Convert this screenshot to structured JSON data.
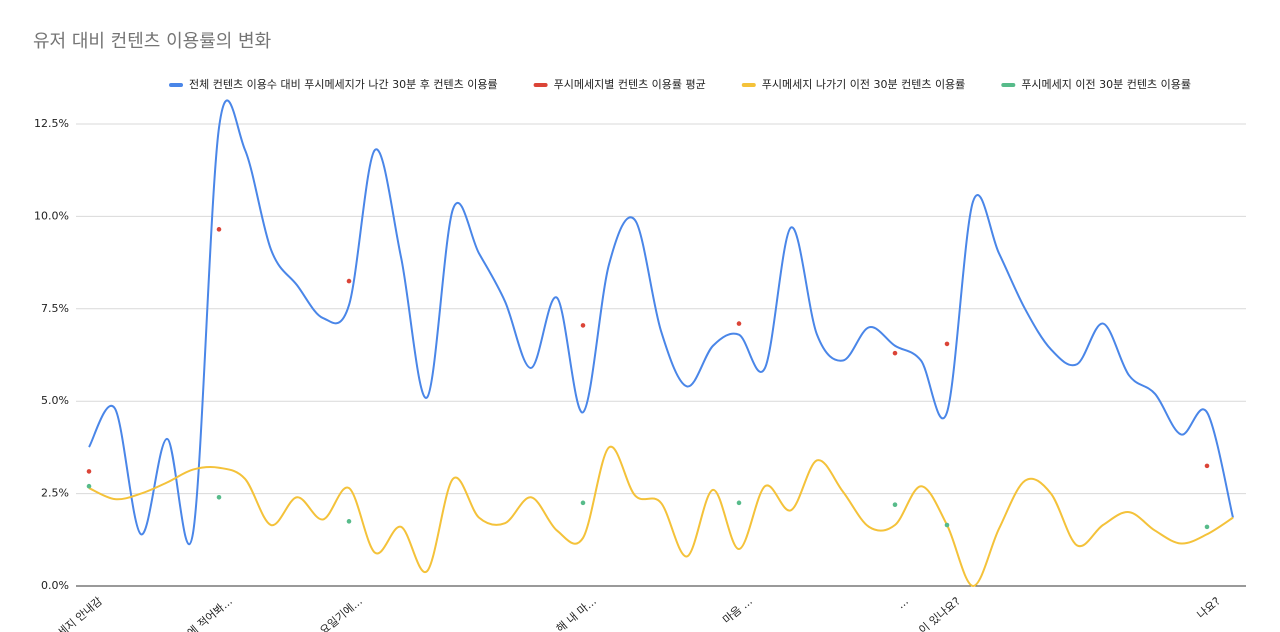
{
  "chart_data": {
    "type": "line",
    "title": "유저 대비 컨텐츠 이용률의 변화",
    "categories": [
      "세지 안내감",
      null,
      null,
      null,
      null,
      "에 적어봐...",
      null,
      null,
      null,
      null,
      "요일기에...",
      null,
      null,
      null,
      null,
      null,
      null,
      null,
      null,
      "해 내 마...",
      null,
      null,
      null,
      null,
      null,
      "마음  ...",
      null,
      null,
      null,
      null,
      null,
      "...",
      null,
      "이 있나요?",
      null,
      null,
      null,
      null,
      null,
      null,
      null,
      null,
      null,
      "나요?",
      null
    ],
    "series": [
      {
        "name": "전체 컨텐츠 이용수 대비 푸시메세지가 나간 30분 후 컨텐츠 이용률",
        "color": "#4a86e8",
        "mode": "line",
        "values": [
          3.76,
          4.8,
          1.4,
          3.98,
          1.43,
          12.4,
          11.8,
          9.1,
          8.14,
          7.25,
          7.6,
          11.8,
          8.9,
          5.1,
          10.2,
          9.0,
          7.7,
          5.9,
          7.8,
          4.7,
          8.7,
          9.9,
          6.9,
          5.4,
          6.5,
          6.8,
          5.9,
          9.7,
          6.8,
          6.1,
          7.0,
          6.5,
          6.1,
          4.7,
          10.4,
          9.0,
          7.5,
          6.4,
          6.0,
          7.1,
          5.7,
          5.2,
          4.1,
          4.7,
          1.85
        ]
      },
      {
        "name": "푸시메세지별 컨텐츠 이용률 평균",
        "color": "#db4437",
        "mode": "markers",
        "values": [
          3.1,
          null,
          null,
          null,
          null,
          9.65,
          null,
          null,
          null,
          null,
          8.25,
          null,
          null,
          null,
          null,
          null,
          null,
          null,
          null,
          7.05,
          null,
          null,
          null,
          null,
          null,
          7.1,
          null,
          null,
          null,
          null,
          null,
          6.3,
          null,
          6.55,
          null,
          null,
          null,
          null,
          null,
          null,
          null,
          null,
          null,
          3.25,
          null
        ]
      },
      {
        "name": "푸시메세지 나가기 이전 30분 컨텐츠 이용률",
        "color": "#f4c23a",
        "mode": "line",
        "values": [
          2.65,
          2.35,
          2.5,
          2.8,
          3.15,
          3.2,
          2.9,
          1.65,
          2.4,
          1.8,
          2.65,
          0.9,
          1.6,
          0.4,
          2.9,
          1.85,
          1.7,
          2.4,
          1.5,
          1.3,
          3.75,
          2.45,
          2.25,
          0.8,
          2.6,
          1.0,
          2.7,
          2.05,
          3.4,
          2.55,
          1.6,
          1.65,
          2.7,
          1.65,
          0.0,
          1.55,
          2.85,
          2.5,
          1.1,
          1.65,
          2.0,
          1.5,
          1.15,
          1.4,
          1.85
        ]
      },
      {
        "name": "푸시메세지 이전 30분 컨텐츠 이용률",
        "color": "#57bb8a",
        "mode": "markers",
        "values": [
          2.7,
          null,
          null,
          null,
          null,
          2.4,
          null,
          null,
          null,
          null,
          1.75,
          null,
          null,
          null,
          null,
          null,
          null,
          null,
          null,
          2.25,
          null,
          null,
          null,
          null,
          null,
          2.25,
          null,
          null,
          null,
          null,
          null,
          2.2,
          null,
          1.65,
          null,
          null,
          null,
          null,
          null,
          null,
          null,
          null,
          null,
          1.6,
          null
        ]
      }
    ],
    "ylim": [
      0,
      12.5
    ],
    "yticks": [
      {
        "value": 0,
        "label": "0.0%"
      },
      {
        "value": 2.5,
        "label": "2.5%"
      },
      {
        "value": 5,
        "label": "5.0%"
      },
      {
        "value": 7.5,
        "label": "7.5%"
      },
      {
        "value": 10,
        "label": "10.0%"
      },
      {
        "value": 12.5,
        "label": "12.5%"
      }
    ],
    "grid": true,
    "legend": "top"
  }
}
